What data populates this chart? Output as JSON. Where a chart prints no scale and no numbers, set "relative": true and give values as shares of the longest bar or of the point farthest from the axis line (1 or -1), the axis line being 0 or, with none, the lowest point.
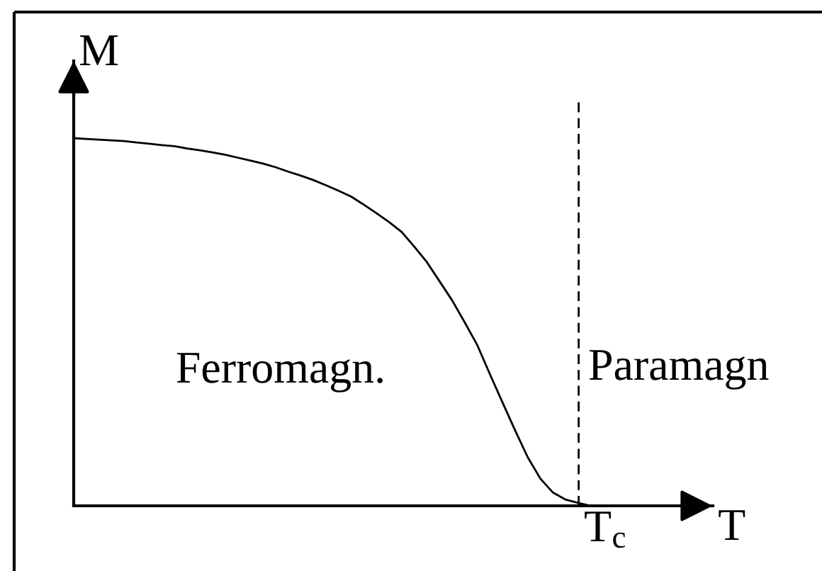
{
  "chart_data": {
    "type": "line",
    "xlabel": "T",
    "ylabel": "M",
    "relative": true,
    "color": "#000000",
    "line_style": "solid",
    "marker": "none",
    "categories": [
      null,
      null,
      null,
      null,
      null,
      null,
      null,
      null,
      null,
      null,
      null,
      null,
      null,
      null,
      null,
      null,
      null,
      null,
      null,
      null,
      null,
      null,
      null,
      null,
      null,
      null,
      null,
      null,
      null,
      null,
      null,
      null,
      null,
      null,
      null,
      null,
      null,
      null,
      null,
      null,
      null,
      null
    ],
    "values": [
      1.0,
      0.998,
      0.996,
      0.994,
      0.992,
      0.988,
      0.985,
      0.981,
      0.978,
      0.972,
      0.967,
      0.961,
      0.955,
      0.947,
      0.939,
      0.931,
      0.921,
      0.909,
      0.898,
      0.886,
      0.872,
      0.857,
      0.841,
      0.819,
      0.796,
      0.772,
      0.745,
      0.705,
      0.663,
      0.611,
      0.559,
      0.499,
      0.437,
      0.358,
      0.281,
      0.205,
      0.132,
      0.074,
      0.036,
      0.017,
      0.008,
      0
    ],
    "annotations": [
      "Ferromagn.",
      "Paramagn",
      "T$_{c}$"
    ]
  }
}
